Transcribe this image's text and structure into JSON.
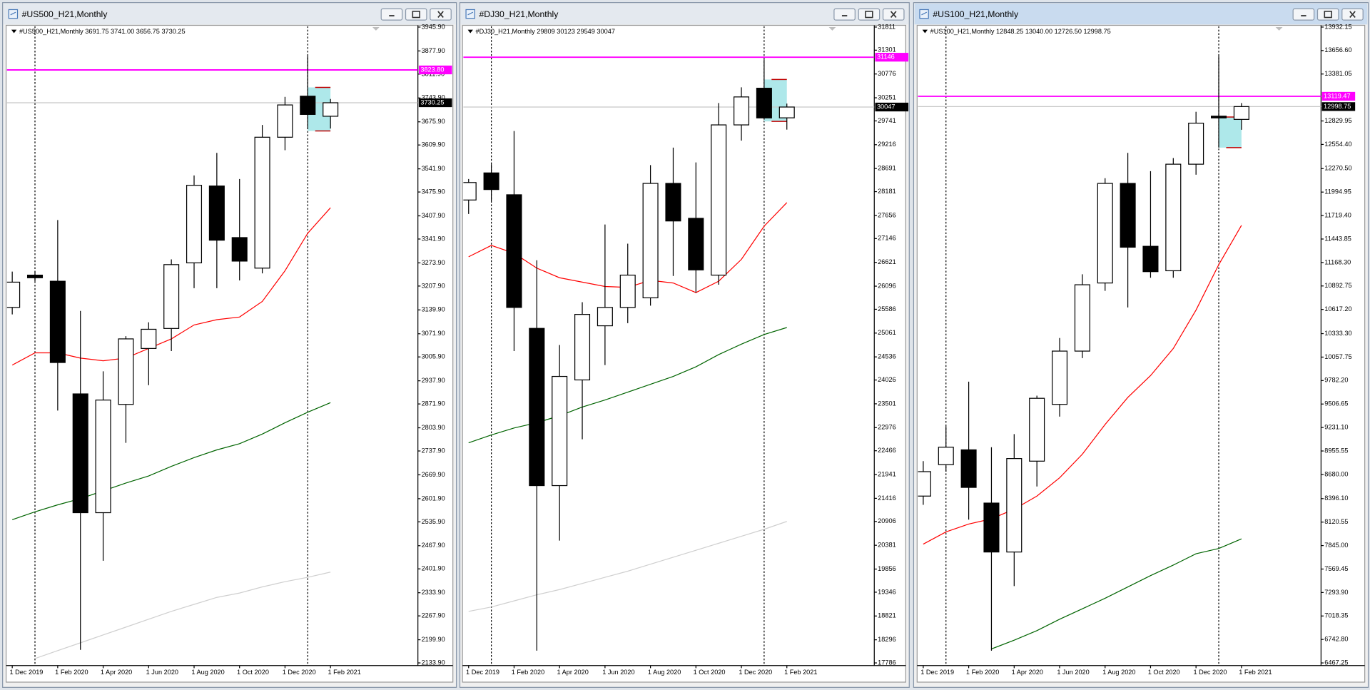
{
  "chart_data": [
    {
      "type": "candlestick",
      "window_title": "#US500_H21,Monthly",
      "active": false,
      "header": "#US500_H21,Monthly  3691.75 3741.00 3656.75 3730.25",
      "categories": [
        "1 Dec 2019",
        null,
        "1 Feb 2020",
        null,
        "1 Apr 2020",
        null,
        "1 Jun 2020",
        null,
        "1 Aug 2020",
        null,
        "1 Oct 2020",
        null,
        "1 Dec 2020",
        null,
        "1 Feb 2021"
      ],
      "open": [
        3147,
        3239,
        3221.6,
        2900.5,
        2562,
        2870.6,
        3030,
        3087,
        3274,
        3493,
        3346,
        3259,
        3632,
        3749,
        3691.75
      ],
      "high": [
        3249,
        3249,
        3396,
        3137,
        2965,
        3065,
        3104.6,
        3284,
        3523,
        3587.5,
        3513,
        3667,
        3747,
        3863.8,
        3741
      ],
      "low": [
        3127,
        3221.6,
        2853,
        2171,
        2425,
        2761,
        2925.4,
        3022.5,
        3201.7,
        3201.7,
        3224,
        3244,
        3595,
        3655,
        3656.75
      ],
      "close": [
        3219,
        3231.5,
        2990,
        2562,
        2883,
        3057.3,
        3084.7,
        3269,
        3495,
        3338.6,
        3279,
        3632,
        3724,
        3697,
        3730.25
      ],
      "series": [
        {
          "color": "#ff0000",
          "values": [
            2982.7,
            3017.5,
            3017.5,
            3002.6,
            2995,
            3002.6,
            3030,
            3057.3,
            3097,
            3112,
            3119.6,
            3164,
            3251.5,
            3358.5,
            3431
          ]
        },
        {
          "color": "#006400",
          "values": [
            2542,
            2564.5,
            2584.4,
            2602,
            2624.2,
            2646.6,
            2666.6,
            2694,
            2719,
            2741,
            2758.6,
            2786,
            2818.4,
            2848.3,
            2875.6
          ]
        },
        {
          "color": "#cfcfcf",
          "values": [
            null,
            2146.4,
            2168.9,
            2191.2,
            2213.6,
            2235.9,
            2258.4,
            2280.8,
            2300.7,
            2320.6,
            2333,
            2350.5,
            2365.4,
            2377.9,
            2392.8
          ]
        }
      ],
      "range_box": {
        "top": 3774,
        "bottom": 3650,
        "color": "#aee8ea",
        "edge_color": "#c00000"
      },
      "levels": [
        {
          "value": 3823.8,
          "label": "3823.80",
          "color": "#ff00ff"
        }
      ],
      "last_price": {
        "value": 3730.25,
        "label": "3730.25"
      },
      "ylim": [
        2126.4,
        3948.4
      ],
      "yticks": [
        {
          "value": 3945.9,
          "label": "3945.90"
        },
        {
          "value": 3877.9,
          "label": "3877.90"
        },
        {
          "value": 3811.9,
          "label": "3811.90"
        },
        {
          "value": 3743.9,
          "label": "3743.90"
        },
        {
          "value": 3675.9,
          "label": "3675.90"
        },
        {
          "value": 3609.9,
          "label": "3609.90"
        },
        {
          "value": 3541.9,
          "label": "3541.90"
        },
        {
          "value": 3475.9,
          "label": "3475.90"
        },
        {
          "value": 3407.9,
          "label": "3407.90"
        },
        {
          "value": 3341.9,
          "label": "3341.90"
        },
        {
          "value": 3273.9,
          "label": "3273.90"
        },
        {
          "value": 3207.9,
          "label": "3207.90"
        },
        {
          "value": 3139.9,
          "label": "3139.90"
        },
        {
          "value": 3071.9,
          "label": "3071.90"
        },
        {
          "value": 3005.9,
          "label": "3005.90"
        },
        {
          "value": 2937.9,
          "label": "2937.90"
        },
        {
          "value": 2871.9,
          "label": "2871.90"
        },
        {
          "value": 2803.9,
          "label": "2803.90"
        },
        {
          "value": 2737.9,
          "label": "2737.90"
        },
        {
          "value": 2669.9,
          "label": "2669.90"
        },
        {
          "value": 2601.9,
          "label": "2601.90"
        },
        {
          "value": 2535.9,
          "label": "2535.90"
        },
        {
          "value": 2467.9,
          "label": "2467.90"
        },
        {
          "value": 2401.9,
          "label": "2401.90"
        },
        {
          "value": 2333.9,
          "label": "2333.90"
        },
        {
          "value": 2267.9,
          "label": "2267.90"
        },
        {
          "value": 2199.9,
          "label": "2199.90"
        },
        {
          "value": 2133.9,
          "label": "2133.90"
        }
      ]
    },
    {
      "type": "candlestick",
      "window_title": "#DJ30_H21,Monthly",
      "active": false,
      "header": "#DJ30_H21,Monthly  29809 30123 29549 30047",
      "categories": [
        "1 Dec 2019",
        null,
        "1 Feb 2020",
        null,
        "1 Apr 2020",
        null,
        "1 Jun 2020",
        null,
        "1 Aug 2020",
        null,
        "1 Oct 2020",
        null,
        "1 Dec 2020",
        null,
        "1 Feb 2021"
      ],
      "open": [
        27996.5,
        28594,
        28112,
        25164.6,
        21697,
        24028,
        25222,
        25627,
        25839,
        28362.6,
        27592,
        26339.7,
        29653,
        30462,
        29809
      ],
      "high": [
        28459,
        28786,
        29518.5,
        26667,
        24798.5,
        25742.5,
        27457,
        27033,
        28767,
        29152,
        28825,
        30135,
        30482,
        31098,
        30123
      ],
      "low": [
        27688,
        27977,
        24663.7,
        18056,
        20483,
        22718,
        24355.4,
        25280,
        25665.5,
        26320.5,
        25954,
        26128,
        29306.5,
        29769,
        29549
      ],
      "close": [
        28382,
        28227.7,
        25627,
        21697,
        24105,
        25472.8,
        25627,
        26339.7,
        28362.6,
        27534,
        26455,
        29653,
        30270,
        29807,
        30047
      ],
      "series": [
        {
          "color": "#ff0000",
          "values": [
            26744,
            26995,
            26821,
            26494,
            26282,
            26185.6,
            26089,
            26070,
            26224,
            26166,
            25954,
            26205,
            26686.5,
            27418.6,
            27938.7
          ]
        },
        {
          "color": "#006400",
          "values": [
            22641,
            22814,
            22968,
            23084,
            23238,
            23430.7,
            23585,
            23758,
            23931.6,
            24105,
            24317,
            24586.6,
            24817.8,
            25029.7,
            25183.8
          ]
        },
        {
          "color": "#cfcfcf",
          "values": [
            18922.7,
            19019,
            19154,
            19289,
            19404,
            19539,
            19674,
            19809,
            19963,
            20117,
            20271,
            20425,
            20579.5,
            20733.6,
            20907
          ]
        }
      ],
      "range_box": {
        "top": 30655,
        "bottom": 29730,
        "color": "#aee8ea",
        "edge_color": "#c00000"
      },
      "levels": [
        {
          "value": 31146,
          "label": "31146",
          "color": "#ff00ff"
        }
      ],
      "last_price": {
        "value": 30047,
        "label": "30047"
      },
      "ylim": [
        17728,
        31830
      ],
      "yticks": [
        31811,
        31301,
        30776,
        30251,
        29741,
        29216,
        28691,
        28181,
        27656,
        27146,
        26621,
        26096,
        25586,
        25061,
        24536,
        24026,
        23501,
        22976,
        22466,
        21941,
        21416,
        20906,
        20381,
        19856,
        19346,
        18821,
        18296,
        17786
      ]
    },
    {
      "type": "candlestick",
      "window_title": "#US100_H21,Monthly",
      "active": true,
      "header": "#US100_H21,Monthly  12848.25 13040.00 12726.50 12998.75",
      "categories": [
        "1 Dec 2019",
        null,
        "1 Feb 2020",
        null,
        "1 Apr 2020",
        null,
        "1 Jun 2020",
        null,
        "1 Aug 2020",
        null,
        "1 Oct 2020",
        null,
        "1 Dec 2020",
        null,
        "1 Feb 2021"
      ],
      "open": [
        8425.8,
        8795,
        8969,
        8343.8,
        7769.5,
        8836,
        9502.5,
        10128,
        10927.8,
        12096.7,
        11358.4,
        11071.3,
        12322.3,
        12886.3,
        12848.25
      ],
      "high": [
        8836,
        9246,
        9769,
        9000,
        9153.8,
        9605,
        10281.8,
        11030,
        12158,
        12455.6,
        12240.3,
        12394,
        12937.6,
        13593.8,
        13040
      ],
      "low": [
        8323,
        8712.9,
        8149,
        6610.8,
        7369.6,
        8538.6,
        9358.9,
        10045.9,
        10835.5,
        10640.7,
        10989,
        10989,
        12199,
        12517,
        12726.5
      ],
      "close": [
        8712.9,
        9000,
        8528,
        7769.5,
        8866.7,
        9574,
        10128,
        10907,
        12096.7,
        11348,
        11061,
        12322.3,
        12804.2,
        12865.7,
        12998.75
      ],
      "series": [
        {
          "color": "#ff0000",
          "values": [
            7861.7,
            8005.3,
            8097.6,
            8159,
            8272,
            8425.8,
            8641,
            8918,
            9266.5,
            9584.5,
            9840.8,
            10158.6,
            10609.8,
            11143,
            11604.5
          ]
        },
        {
          "color": "#006400",
          "values": [
            null,
            null,
            null,
            6631.4,
            6733.8,
            6846.7,
            6980,
            7103,
            7226,
            7359.4,
            7492.7,
            7615.7,
            7749,
            7810.5,
            7923.3
          ]
        }
      ],
      "range_box": {
        "top": 12876,
        "bottom": 12517,
        "color": "#aee8ea",
        "edge_color": "#c00000"
      },
      "levels": [
        {
          "value": 13119.47,
          "label": "13119.47",
          "color": "#ff00ff"
        }
      ],
      "last_price": {
        "value": 12998.75,
        "label": "12998.75"
      },
      "ylim": [
        6436.5,
        13942.4
      ],
      "yticks": [
        {
          "value": 13932.15,
          "label": "13932.15"
        },
        {
          "value": 13656.6,
          "label": "13656.60"
        },
        {
          "value": 13381.05,
          "label": "13381.05"
        },
        {
          "value": 12829.95,
          "label": "12829.95"
        },
        {
          "value": 12554.4,
          "label": "12554.40"
        },
        {
          "value": 12270.5,
          "label": "12270.50"
        },
        {
          "value": 11994.95,
          "label": "11994.95"
        },
        {
          "value": 11719.4,
          "label": "11719.40"
        },
        {
          "value": 11443.85,
          "label": "11443.85"
        },
        {
          "value": 11168.3,
          "label": "11168.30"
        },
        {
          "value": 10892.75,
          "label": "10892.75"
        },
        {
          "value": 10617.2,
          "label": "10617.20"
        },
        {
          "value": 10333.3,
          "label": "10333.30"
        },
        {
          "value": 10057.75,
          "label": "10057.75"
        },
        {
          "value": 9782.2,
          "label": "9782.20"
        },
        {
          "value": 9506.65,
          "label": "9506.65"
        },
        {
          "value": 9231.1,
          "label": "9231.10"
        },
        {
          "value": 8955.55,
          "label": "8955.55"
        },
        {
          "value": 8680,
          "label": "8680.00"
        },
        {
          "value": 8396.1,
          "label": "8396.10"
        },
        {
          "value": 8120.55,
          "label": "8120.55"
        },
        {
          "value": 7845,
          "label": "7845.00"
        },
        {
          "value": 7569.45,
          "label": "7569.45"
        },
        {
          "value": 7293.9,
          "label": "7293.90"
        },
        {
          "value": 7018.35,
          "label": "7018.35"
        },
        {
          "value": 6742.8,
          "label": "6742.80"
        },
        {
          "value": 6467.25,
          "label": "6467.25"
        }
      ]
    }
  ]
}
